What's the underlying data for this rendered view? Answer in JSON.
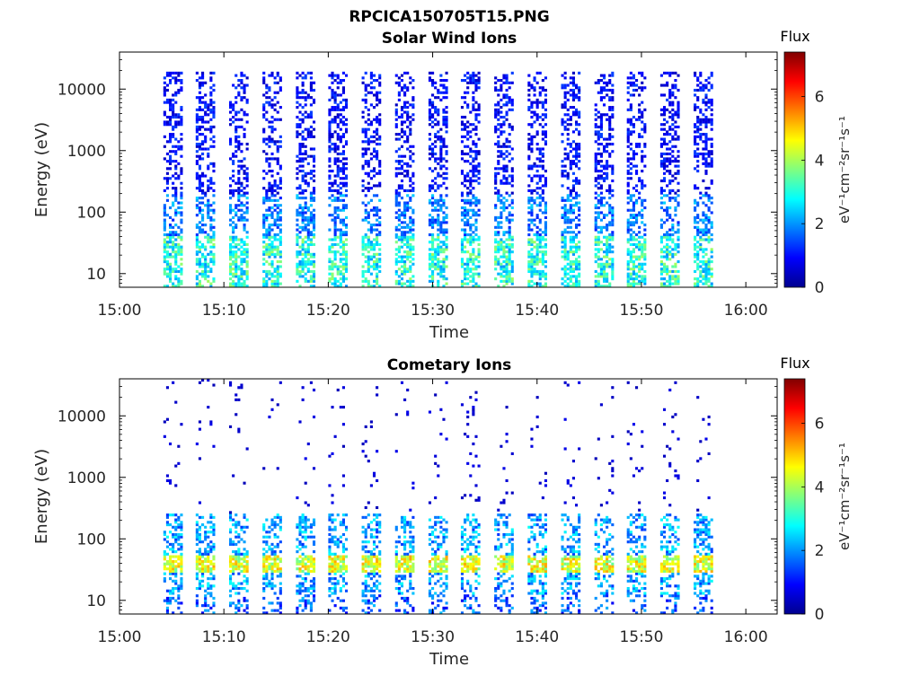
{
  "page_title": "RPCICA150705T15.PNG",
  "chart_data": [
    {
      "type": "heatmap",
      "title": "Solar Wind Ions",
      "xlabel": "Time",
      "ylabel": "Energy (eV)",
      "x_range": [
        "15:00",
        "16:03"
      ],
      "x_ticks": [
        "15:00",
        "15:10",
        "15:20",
        "15:30",
        "15:40",
        "15:50",
        "16:00"
      ],
      "y_scale": "log",
      "y_range": [
        6,
        40000
      ],
      "y_ticks": [
        "10",
        "100",
        "1000",
        "10000"
      ],
      "colorbar": {
        "title": "Flux",
        "label": "eV⁻¹cm⁻²sr⁻¹s⁻¹",
        "range": [
          0,
          7.4
        ],
        "ticks": [
          "0",
          "2",
          "4",
          "6"
        ]
      },
      "scan_start_minutes": [
        4.2,
        7.3,
        10.5,
        13.7,
        16.9,
        20.0,
        23.2,
        26.4,
        29.6,
        32.7,
        35.9,
        39.1,
        42.3,
        45.5,
        48.6,
        51.8,
        55.0
      ],
      "scan_duration_minutes": 1.8,
      "energy_max_ev": 20000,
      "level_low_energy": 3.3,
      "level_mid_energy": 1.9,
      "level_high_energy": 1.1,
      "occupancy": 0.45
    },
    {
      "type": "heatmap",
      "title": "Cometary Ions",
      "xlabel": "Time",
      "ylabel": "Energy (eV)",
      "x_range": [
        "15:00",
        "16:03"
      ],
      "x_ticks": [
        "15:00",
        "15:10",
        "15:20",
        "15:30",
        "15:40",
        "15:50",
        "16:00"
      ],
      "y_scale": "log",
      "y_range": [
        6,
        40000
      ],
      "y_ticks": [
        "10",
        "100",
        "1000",
        "10000"
      ],
      "colorbar": {
        "title": "Flux",
        "label": "eV⁻¹cm⁻²sr⁻¹s⁻¹",
        "range": [
          0,
          7.4
        ],
        "ticks": [
          "0",
          "2",
          "4",
          "6"
        ]
      },
      "scan_start_minutes": [
        4.2,
        7.3,
        10.5,
        13.7,
        16.9,
        20.0,
        23.2,
        26.4,
        29.6,
        32.7,
        35.9,
        39.1,
        42.3,
        45.5,
        48.6,
        51.8,
        55.0
      ],
      "scan_duration_minutes": 1.8,
      "peak_energy_ev": 40,
      "peak_level": 4.6,
      "band_level": 2.6,
      "sparse_level": 0.5,
      "occupancy": 0.25
    }
  ]
}
